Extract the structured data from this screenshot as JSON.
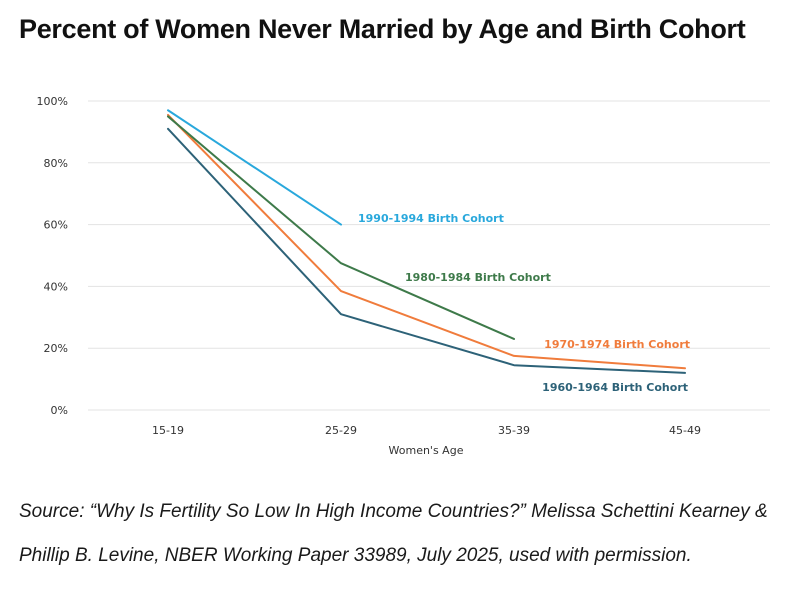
{
  "title": "Percent of Women Never Married by Age and Birth Cohort",
  "source_lines": [
    "Source: “Why Is Fertility So Low In High Income Countries?” Melissa Schettini Kearney &",
    "Phillip B. Levine, NBER Working Paper 33989, July 2025, used with permission."
  ],
  "chart_data": {
    "type": "line",
    "title": "Percent of Women Never Married by Age and Birth Cohort",
    "xlabel": "Women's Age",
    "ylabel": "",
    "categories": [
      "15-19",
      "25-29",
      "35-39",
      "45-49"
    ],
    "ylim": [
      0,
      100
    ],
    "yticks": [
      "0%",
      "20%",
      "40%",
      "60%",
      "80%",
      "100%"
    ],
    "grid": true,
    "legend": "inline labels",
    "series": [
      {
        "name": "1990-1994 Birth Cohort",
        "color": "#29a8dc",
        "values": [
          97,
          60,
          null,
          null
        ]
      },
      {
        "name": "1980-1984 Birth Cohort",
        "color": "#3e7a4a",
        "values": [
          95,
          47.5,
          23,
          null
        ]
      },
      {
        "name": "1970-1974 Birth Cohort",
        "color": "#f07c3c",
        "values": [
          95.5,
          38.5,
          17.5,
          13.5
        ]
      },
      {
        "name": "1960-1964 Birth Cohort",
        "color": "#2d6278",
        "values": [
          91,
          31,
          14.5,
          12
        ]
      }
    ]
  }
}
